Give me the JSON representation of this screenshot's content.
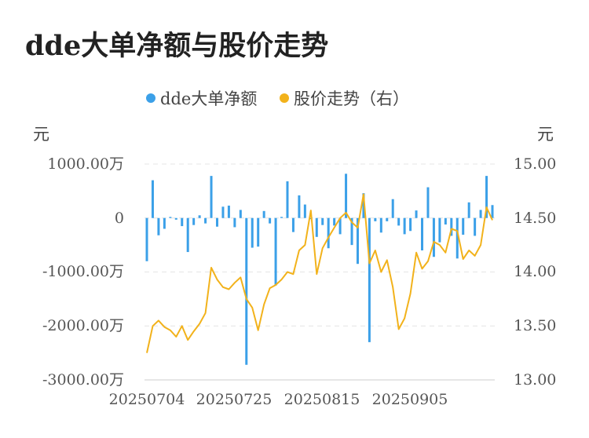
{
  "title": "dde大单净额与股价走势",
  "legend": [
    {
      "label": "dde大单净额",
      "color": "#3ba0e8"
    },
    {
      "label": "股价走势（右）",
      "color": "#f2b21b"
    }
  ],
  "left_unit": "元",
  "right_unit": "元",
  "left_ticks": [
    "1000.00万",
    "0",
    "-1000.00万",
    "-2000.00万",
    "-3000.00万"
  ],
  "right_ticks": [
    "15.00",
    "14.50",
    "14.00",
    "13.50",
    "13.00"
  ],
  "x_ticks": [
    "20250704",
    "20250725",
    "20250815",
    "20250905"
  ],
  "chart_data": {
    "type": "bar+line",
    "title": "dde大单净额与股价走势",
    "x_tick_labels": [
      "20250704",
      "20250725",
      "20250815",
      "20250905"
    ],
    "n_points": 60,
    "left_axis": {
      "unit": "元",
      "range_wan": [
        -3000,
        1000
      ]
    },
    "right_axis": {
      "unit": "元",
      "range": [
        13.0,
        15.0
      ]
    },
    "series": [
      {
        "name": "dde大单净额",
        "type": "bar",
        "axis": "left",
        "unit": "万",
        "values": [
          -800,
          700,
          -320,
          -200,
          20,
          -30,
          -150,
          -630,
          -130,
          50,
          -100,
          780,
          -160,
          210,
          230,
          -170,
          150,
          -2720,
          -550,
          -530,
          130,
          -100,
          -1250,
          20,
          680,
          -260,
          420,
          250,
          -20,
          -350,
          -130,
          -560,
          -140,
          -300,
          820,
          -500,
          -850,
          460,
          -2300,
          -60,
          -270,
          -60,
          350,
          -140,
          -300,
          -240,
          140,
          -600,
          570,
          -720,
          -450,
          -120,
          -330,
          -750,
          -310,
          290,
          -330,
          150,
          780,
          240
        ]
      },
      {
        "name": "股价走势（右）",
        "type": "line",
        "axis": "right",
        "values": [
          13.25,
          13.5,
          13.55,
          13.49,
          13.46,
          13.4,
          13.5,
          13.37,
          13.45,
          13.52,
          13.62,
          14.04,
          13.93,
          13.86,
          13.84,
          13.9,
          13.95,
          13.75,
          13.67,
          13.46,
          13.7,
          13.85,
          13.88,
          13.93,
          14.0,
          13.98,
          14.2,
          14.25,
          14.57,
          13.98,
          14.22,
          14.32,
          14.41,
          14.5,
          14.55,
          14.46,
          14.41,
          14.72,
          14.08,
          14.2,
          14.0,
          14.11,
          13.86,
          13.47,
          13.57,
          13.8,
          14.18,
          14.03,
          14.1,
          14.28,
          14.25,
          14.18,
          14.4,
          14.38,
          14.12,
          14.2,
          14.15,
          14.25,
          14.6,
          14.48
        ]
      }
    ],
    "grid": true,
    "legend_position": "top-center"
  }
}
